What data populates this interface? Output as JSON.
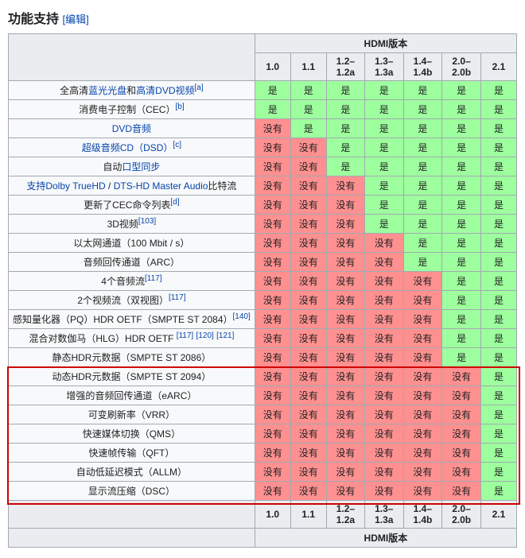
{
  "heading_text": "功能支持",
  "edit_label": "[编辑]",
  "header_title": "HDMI版本",
  "versions": [
    "1.0",
    "1.1",
    "1.2–1.2a",
    "1.3–1.3a",
    "1.4–1.4b",
    "2.0–2.0b",
    "2.1"
  ],
  "yes_label": "是",
  "no_label": "没有",
  "colors": {
    "yes_bg": "#9eff9e",
    "no_bg": "#ff9090",
    "header_bg": "#eaecf0",
    "border": "#a2a9b1",
    "link": "#0645ad",
    "highlight_border": "#d00000"
  },
  "highlight_rows": {
    "start_index": 15,
    "end_index": 21
  },
  "rows": [
    {
      "label_parts": [
        {
          "t": "全高清",
          "l": false
        },
        {
          "t": "蓝光光盘",
          "l": true
        },
        {
          "t": "和",
          "l": false
        },
        {
          "t": "高清DVD视频",
          "l": true
        }
      ],
      "refs": [
        "[a]"
      ],
      "support": 7
    },
    {
      "label_parts": [
        {
          "t": "消费电子控制（CEC）",
          "l": false
        }
      ],
      "refs": [
        "[b]"
      ],
      "support": 7
    },
    {
      "label_parts": [
        {
          "t": "DVD音频",
          "l": true
        }
      ],
      "refs": [],
      "support": 6
    },
    {
      "label_parts": [
        {
          "t": "超级音频CD（DSD）",
          "l": true
        }
      ],
      "refs": [
        "[c]"
      ],
      "support": 5
    },
    {
      "label_parts": [
        {
          "t": "自动",
          "l": false
        },
        {
          "t": "口型同步",
          "l": true
        }
      ],
      "refs": [],
      "support": 5
    },
    {
      "label_parts": [
        {
          "t": "支持Dolby TrueHD",
          "l": true
        },
        {
          "t": " / ",
          "l": false
        },
        {
          "t": "DTS-HD Master Audio",
          "l": true
        },
        {
          "t": "比特流",
          "l": false
        }
      ],
      "refs": [],
      "support": 4
    },
    {
      "label_parts": [
        {
          "t": "更新了CEC命令列表",
          "l": false
        }
      ],
      "refs": [
        "[d]"
      ],
      "support": 4
    },
    {
      "label_parts": [
        {
          "t": "3D视频",
          "l": false
        }
      ],
      "refs": [
        "[103]"
      ],
      "support": 4
    },
    {
      "label_parts": [
        {
          "t": "以太网通道（100 Mbit / s）",
          "l": false
        }
      ],
      "refs": [],
      "support": 3
    },
    {
      "label_parts": [
        {
          "t": "音频回传通道（ARC）",
          "l": false
        }
      ],
      "refs": [],
      "support": 3
    },
    {
      "label_parts": [
        {
          "t": "4个音频流",
          "l": false
        }
      ],
      "refs": [
        "[117]"
      ],
      "support": 2
    },
    {
      "label_parts": [
        {
          "t": "2个视频流（双视图）",
          "l": false
        }
      ],
      "refs": [
        "[117]"
      ],
      "support": 2
    },
    {
      "label_parts": [
        {
          "t": "感知量化器（PQ）HDR OETF（SMPTE ST 2084）",
          "l": false
        }
      ],
      "refs": [
        "[140]"
      ],
      "support": 2
    },
    {
      "label_parts": [
        {
          "t": "混合对数伽马（HLG）HDR OETF ",
          "l": false
        }
      ],
      "refs": [
        "[117]",
        "[120]",
        "[121]"
      ],
      "support": 2
    },
    {
      "label_parts": [
        {
          "t": "静态HDR元数据（SMPTE ST 2086）",
          "l": false
        }
      ],
      "refs": [],
      "support": 2
    },
    {
      "label_parts": [
        {
          "t": "动态HDR元数据（SMPTE ST 2094）",
          "l": false
        }
      ],
      "refs": [],
      "support": 1
    },
    {
      "label_parts": [
        {
          "t": "增强的音频回传通道（eARC）",
          "l": false
        }
      ],
      "refs": [],
      "support": 1
    },
    {
      "label_parts": [
        {
          "t": "可变刷新率（VRR）",
          "l": false
        }
      ],
      "refs": [],
      "support": 1
    },
    {
      "label_parts": [
        {
          "t": "快速媒体切换（QMS）",
          "l": false
        }
      ],
      "refs": [],
      "support": 1
    },
    {
      "label_parts": [
        {
          "t": "快速帧传输（QFT）",
          "l": false
        }
      ],
      "refs": [],
      "support": 1
    },
    {
      "label_parts": [
        {
          "t": "自动低延迟模式（ALLM）",
          "l": false
        }
      ],
      "refs": [],
      "support": 1
    },
    {
      "label_parts": [
        {
          "t": "显示流压缩（DSC）",
          "l": false
        }
      ],
      "refs": [],
      "support": 1
    }
  ]
}
